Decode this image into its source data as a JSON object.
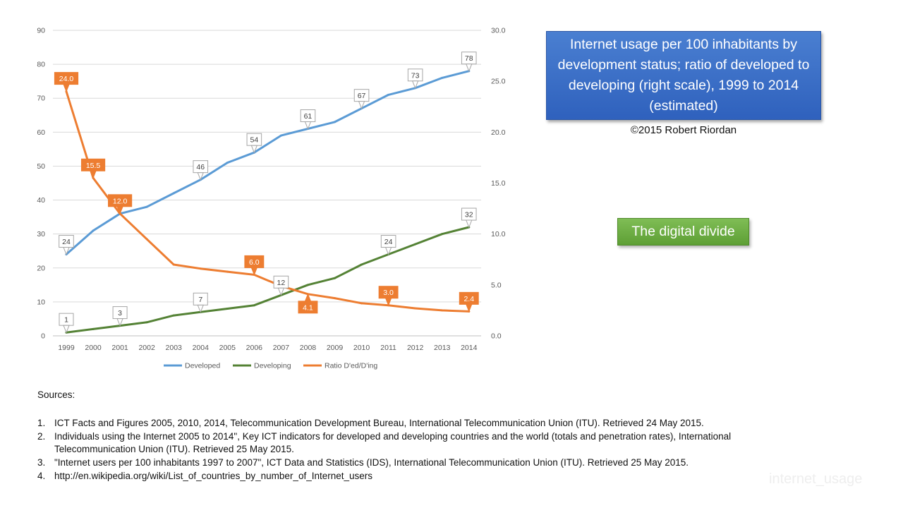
{
  "title": "Internet usage per 100 inhabitants by development status; ratio of developed to developing (right scale), 1999 to 2014 (estimated)",
  "copyright": "©2015 Robert Riordan",
  "callout": "The digital divide",
  "sources": {
    "heading": "Sources:",
    "items": [
      {
        "num": "1.",
        "text": "ICT Facts and Figures 2005, 2010, 2014, Telecommunication Development Bureau, International Telecommunication Union (ITU). Retrieved 24 May 2015."
      },
      {
        "num": "2.",
        "text": "Individuals using the Internet 2005 to 2014\", Key ICT indicators for developed and developing countries and the world (totals and penetration rates), International Telecommunication Union (ITU). Retrieved 25 May 2015."
      },
      {
        "num": "3.",
        "text": "\"Internet users per 100 inhabitants 1997 to 2007\", ICT Data and Statistics (IDS), International Telecommunication Union (ITU). Retrieved 25 May 2015."
      },
      {
        "num": "4.",
        "text": "http://en.wikipedia.org/wiki/List_of_countries_by_number_of_Internet_users"
      }
    ]
  },
  "watermark": "internet_usage",
  "colors": {
    "developed": "#5b9bd5",
    "developing": "#548235",
    "ratio": "#ed7d31",
    "title_bg": "#3a6fc8",
    "callout_bg": "#70ad47"
  },
  "chart_data": {
    "type": "line",
    "categories": [
      "1999",
      "2000",
      "2001",
      "2002",
      "2003",
      "2004",
      "2005",
      "2006",
      "2007",
      "2008",
      "2009",
      "2010",
      "2011",
      "2012",
      "2013",
      "2014"
    ],
    "y_left": {
      "min": 0,
      "max": 90,
      "step": 10,
      "ticks": [
        "0",
        "10",
        "20",
        "30",
        "40",
        "50",
        "60",
        "70",
        "80",
        "90"
      ]
    },
    "y_right": {
      "min": 0,
      "max": 30,
      "step": 5,
      "ticks": [
        "0.0",
        "5.0",
        "10.0",
        "15.0",
        "20.0",
        "25.0",
        "30.0"
      ]
    },
    "grid": true,
    "legend_position": "bottom",
    "series": [
      {
        "name": "Developed",
        "axis": "left",
        "color": "#5b9bd5",
        "values": [
          24,
          31,
          36,
          38,
          42,
          46,
          51,
          54,
          59,
          61,
          63,
          67,
          71,
          73,
          76,
          78
        ],
        "labels": [
          {
            "i": 0,
            "text": "24"
          },
          {
            "i": 5,
            "text": "46"
          },
          {
            "i": 7,
            "text": "54"
          },
          {
            "i": 9,
            "text": "61"
          },
          {
            "i": 11,
            "text": "67"
          },
          {
            "i": 13,
            "text": "73"
          },
          {
            "i": 15,
            "text": "78"
          }
        ]
      },
      {
        "name": "Developing",
        "axis": "left",
        "color": "#548235",
        "values": [
          1,
          2,
          3,
          4,
          6,
          7,
          8,
          9,
          12,
          15,
          17,
          21,
          24,
          27,
          30,
          32
        ],
        "labels": [
          {
            "i": 0,
            "text": "1"
          },
          {
            "i": 2,
            "text": "3"
          },
          {
            "i": 5,
            "text": "7"
          },
          {
            "i": 8,
            "text": "12"
          },
          {
            "i": 12,
            "text": "24"
          },
          {
            "i": 15,
            "text": "32"
          }
        ]
      },
      {
        "name": "Ratio D'ed/D'ing",
        "axis": "right",
        "color": "#ed7d31",
        "values": [
          24.0,
          15.5,
          12.0,
          9.5,
          7.0,
          6.6,
          6.3,
          6.0,
          4.9,
          4.1,
          3.7,
          3.2,
          3.0,
          2.7,
          2.5,
          2.4
        ],
        "labels": [
          {
            "i": 0,
            "text": "24.0"
          },
          {
            "i": 1,
            "text": "15.5"
          },
          {
            "i": 2,
            "text": "12.0"
          },
          {
            "i": 7,
            "text": "6.0"
          },
          {
            "i": 9,
            "text": "4.1"
          },
          {
            "i": 12,
            "text": "3.0"
          },
          {
            "i": 15,
            "text": "2.4"
          }
        ]
      }
    ]
  }
}
